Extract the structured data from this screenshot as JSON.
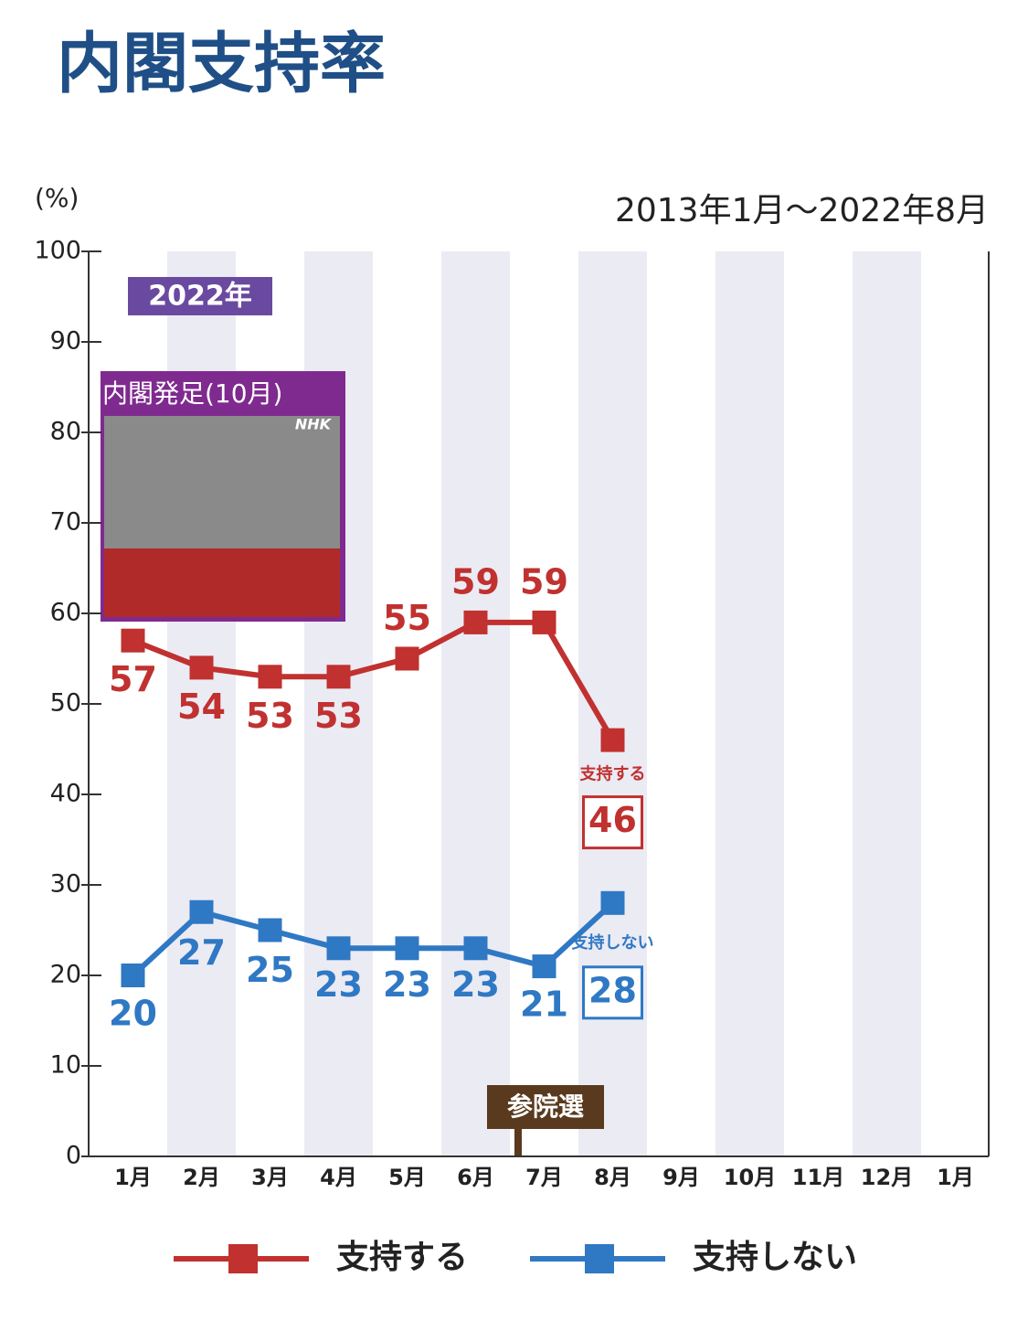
{
  "chart_data": {
    "type": "line",
    "title": "内閣支持率",
    "unit_label": "(%)",
    "period": "2013年1月～2022年8月",
    "categories": [
      "1月",
      "2月",
      "3月",
      "4月",
      "5月",
      "6月",
      "7月",
      "8月",
      "9月",
      "10月",
      "11月",
      "12月",
      "1月"
    ],
    "series": [
      {
        "name": "支持する",
        "color": "#c0312f",
        "values": [
          57,
          54,
          53,
          53,
          55,
          59,
          59,
          46,
          null,
          null,
          null,
          null,
          null
        ]
      },
      {
        "name": "支持しない",
        "color": "#2f78c4",
        "values": [
          20,
          27,
          25,
          23,
          23,
          23,
          21,
          28,
          null,
          null,
          null,
          null,
          null
        ]
      }
    ],
    "ylim": [
      0,
      100
    ],
    "yticks": [
      0,
      10,
      20,
      30,
      40,
      50,
      60,
      70,
      80,
      90,
      100
    ],
    "annotations": {
      "year": "2022年",
      "photo_caption": "内閣発足(10月)",
      "photo_logo": "NHK",
      "election": "参院選"
    }
  }
}
